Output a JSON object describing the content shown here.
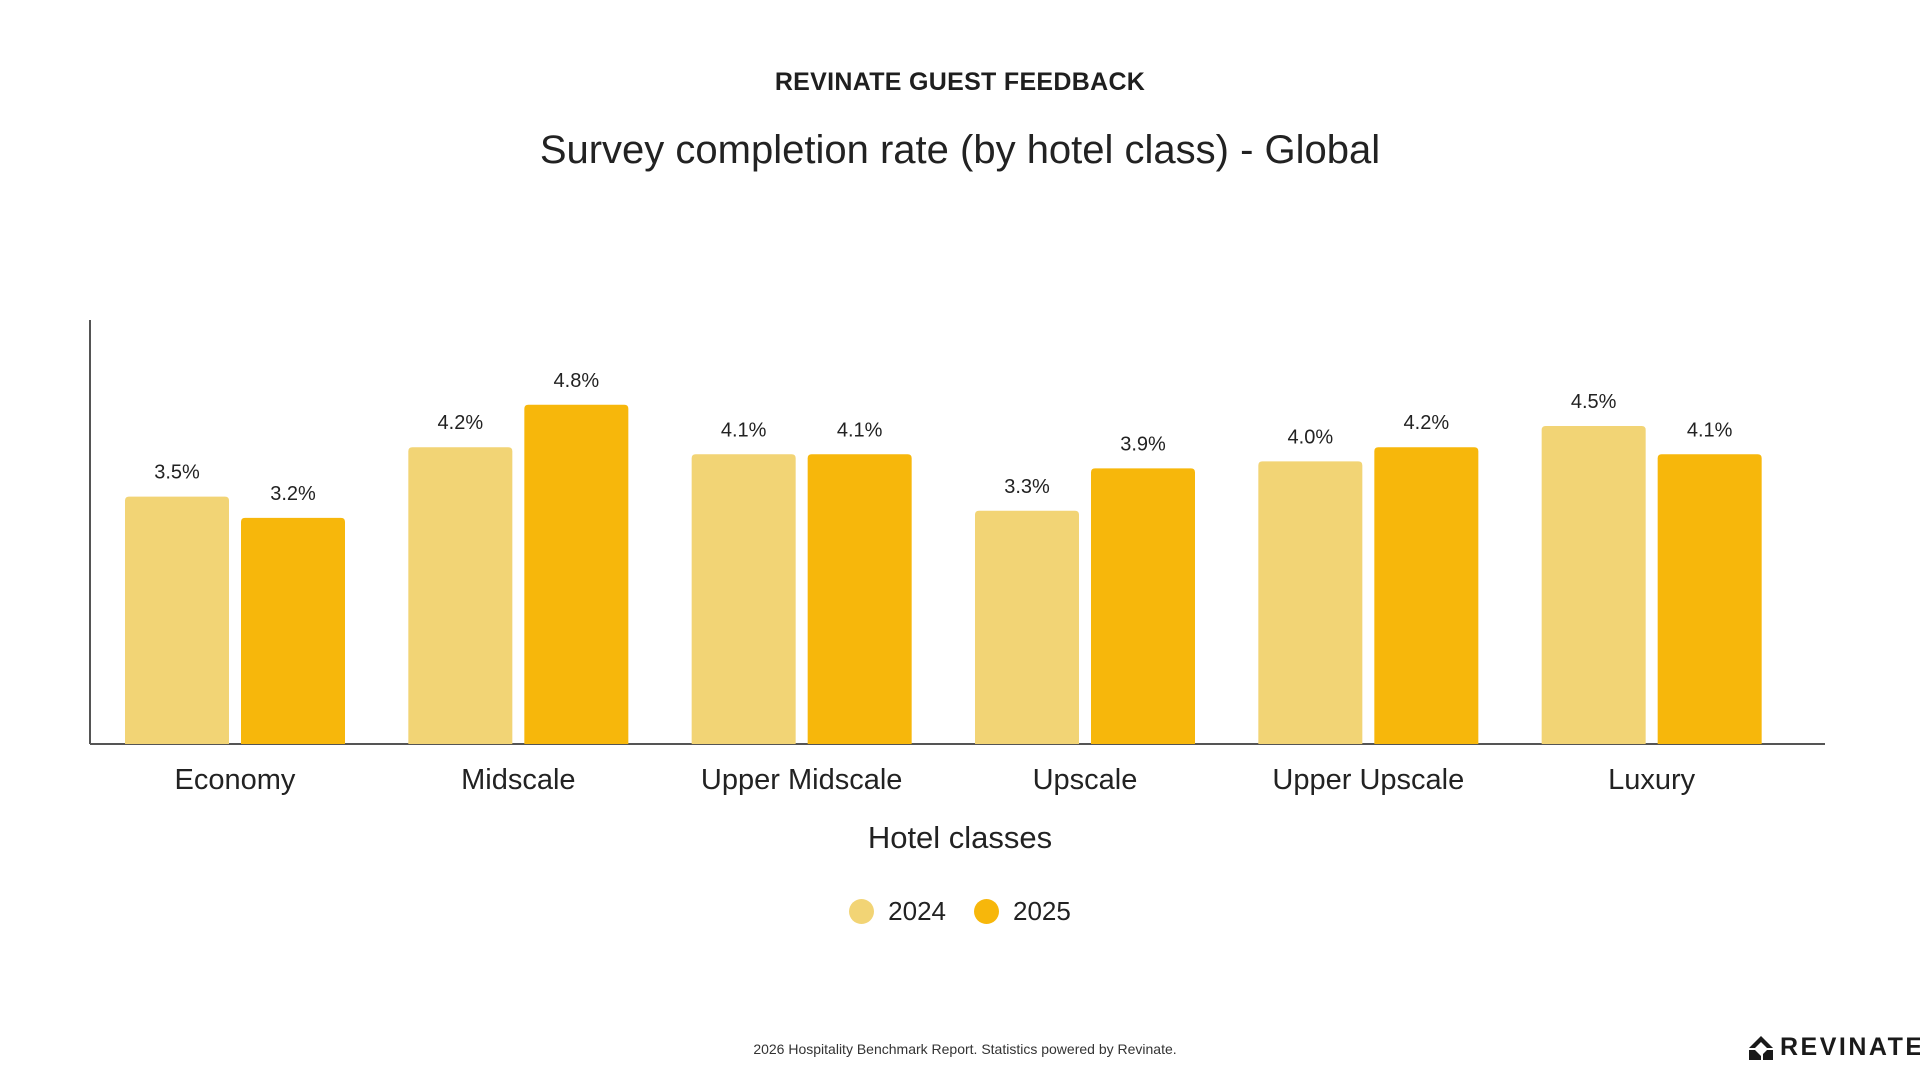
{
  "header": {
    "brand_heading": "REVINATE GUEST FEEDBACK"
  },
  "chart_data": {
    "type": "bar",
    "title": "Survey completion rate (by hotel class) - Global",
    "xlabel": "Hotel classes",
    "ylabel": "",
    "categories": [
      "Economy",
      "Midscale",
      "Upper Midscale",
      "Upscale",
      "Upper Upscale",
      "Luxury"
    ],
    "series": [
      {
        "name": "2024",
        "color": "#F2D475",
        "values": [
          3.5,
          4.2,
          4.1,
          3.3,
          4.0,
          4.5
        ],
        "labels": [
          "3.5%",
          "4.2%",
          "4.1%",
          "3.3%",
          "4.0%",
          "4.5%"
        ]
      },
      {
        "name": "2025",
        "color": "#F7B70B",
        "values": [
          3.2,
          4.8,
          4.1,
          3.9,
          4.2,
          4.1
        ],
        "labels": [
          "3.2%",
          "4.8%",
          "4.1%",
          "3.9%",
          "4.2%",
          "4.1%"
        ]
      }
    ],
    "ylim": [
      0,
      6
    ],
    "grid": false,
    "legend": "bottom-center",
    "data_labels": true
  },
  "footer": {
    "note": "2026 Hospitality Benchmark Report. Statistics powered by Revinate.",
    "logo_text": "REVINATE",
    "logo_icon": "revinate-mark-icon"
  }
}
